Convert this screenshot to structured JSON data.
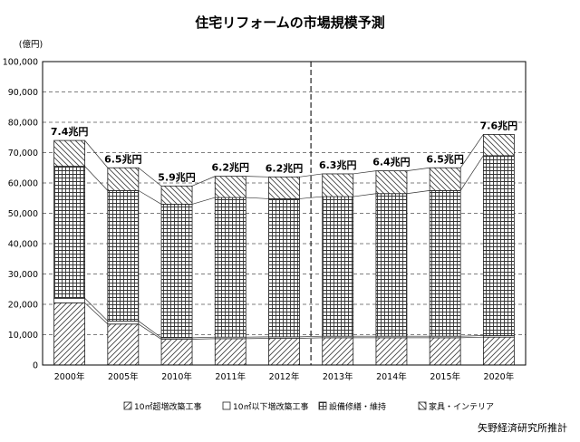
{
  "chart_data": {
    "type": "bar",
    "stacked": true,
    "title": "住宅リフォームの市場規模予測",
    "unit_label": "(億円)",
    "source": "矢野経済研究所推計",
    "categories": [
      "2000年",
      "2005年",
      "2010年",
      "2011年",
      "2012年",
      "2013年",
      "2014年",
      "2015年",
      "2020年"
    ],
    "forecast_from_index": 5,
    "ylim": [
      0,
      100000
    ],
    "yticks": [
      "0",
      "10,000",
      "20,000",
      "30,000",
      "40,000",
      "50,000",
      "60,000",
      "70,000",
      "80,000",
      "90,000",
      "100,000"
    ],
    "grid": true,
    "legend_position": "bottom",
    "series": [
      {
        "name": "10㎡超増改築工事",
        "pattern": "hatch-right",
        "values": [
          20500,
          13500,
          8500,
          8700,
          8800,
          9000,
          9000,
          9000,
          9200
        ]
      },
      {
        "name": "10㎡以下増改築工事",
        "pattern": "plain",
        "values": [
          1500,
          1000,
          500,
          500,
          500,
          500,
          500,
          500,
          500
        ]
      },
      {
        "name": "設備修繕・維持",
        "pattern": "grid",
        "values": [
          43500,
          43000,
          44000,
          46000,
          45500,
          46000,
          47000,
          48000,
          59300
        ]
      },
      {
        "name": "家具・インテリア",
        "pattern": "hatch-left",
        "values": [
          8500,
          7500,
          6000,
          7000,
          7200,
          7500,
          7500,
          7500,
          7000
        ]
      }
    ],
    "total_labels": [
      "7.4兆円",
      "6.5兆円",
      "5.9兆円",
      "6.2兆円",
      "6.2兆円",
      "6.3兆円",
      "6.4兆円",
      "6.5兆円",
      "7.6兆円"
    ]
  }
}
